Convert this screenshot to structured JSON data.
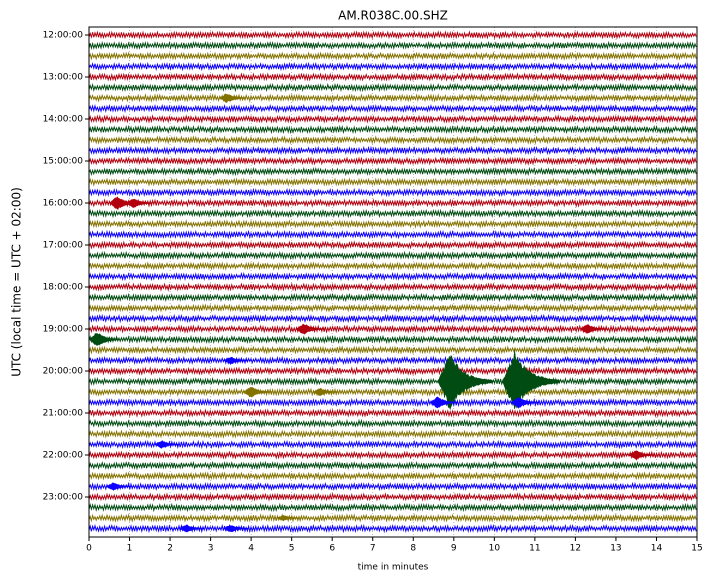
{
  "chart_data": {
    "type": "helicorder",
    "title": "AM.R038C.00.SHZ",
    "x_label": "time in minutes",
    "y_label": "UTC (local time = UTC + 02:00)",
    "xlim": [
      0,
      15
    ],
    "xticks": [
      0,
      1,
      2,
      3,
      4,
      5,
      6,
      7,
      8,
      9,
      10,
      11,
      12,
      13,
      14,
      15
    ],
    "grid": true,
    "colors": [
      "#B2000F",
      "#004C12",
      "#847200",
      "#0E01FF"
    ],
    "rows": [
      "12:00:00",
      null,
      null,
      null,
      "13:00:00",
      null,
      null,
      null,
      "14:00:00",
      null,
      null,
      null,
      "15:00:00",
      null,
      null,
      null,
      "16:00:00",
      null,
      null,
      null,
      "17:00:00",
      null,
      null,
      null,
      "18:00:00",
      null,
      null,
      null,
      "19:00:00",
      null,
      null,
      null,
      "20:00:00",
      null,
      null,
      null,
      "21:00:00",
      null,
      null,
      null,
      "22:00:00",
      null,
      null,
      null,
      "23:00:00",
      null,
      null,
      null
    ],
    "events": [
      {
        "row": 6,
        "x": 3.4,
        "amplitude": 0.5
      },
      {
        "row": 16,
        "x": 0.7,
        "amplitude": 0.7
      },
      {
        "row": 16,
        "x": 1.1,
        "amplitude": 0.5
      },
      {
        "row": 28,
        "x": 5.3,
        "amplitude": 0.6
      },
      {
        "row": 28,
        "x": 12.3,
        "amplitude": 0.5
      },
      {
        "row": 29,
        "x": 0.2,
        "amplitude": 0.8
      },
      {
        "row": 31,
        "x": 3.5,
        "amplitude": 0.4
      },
      {
        "row": 33,
        "x": 8.9,
        "amplitude": 2.8
      },
      {
        "row": 33,
        "x": 10.5,
        "amplitude": 3.0
      },
      {
        "row": 34,
        "x": 4.0,
        "amplitude": 0.6
      },
      {
        "row": 34,
        "x": 5.7,
        "amplitude": 0.4
      },
      {
        "row": 35,
        "x": 8.6,
        "amplitude": 0.6
      },
      {
        "row": 35,
        "x": 10.6,
        "amplitude": 0.6
      },
      {
        "row": 39,
        "x": 1.8,
        "amplitude": 0.4
      },
      {
        "row": 40,
        "x": 13.5,
        "amplitude": 0.5
      },
      {
        "row": 43,
        "x": 0.6,
        "amplitude": 0.4
      },
      {
        "row": 46,
        "x": 4.8,
        "amplitude": 0.3
      },
      {
        "row": 47,
        "x": 2.4,
        "amplitude": 0.4
      },
      {
        "row": 47,
        "x": 3.5,
        "amplitude": 0.4
      }
    ]
  }
}
